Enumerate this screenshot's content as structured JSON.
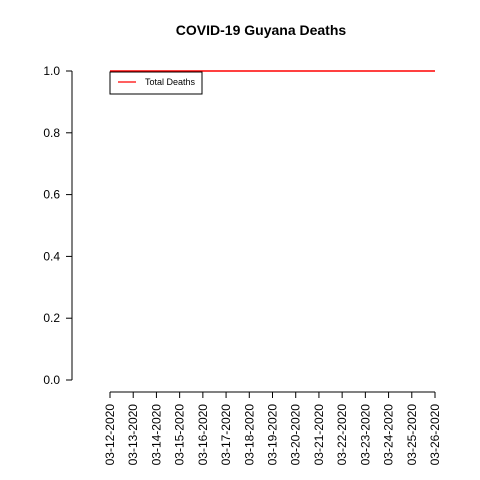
{
  "chart_data": {
    "type": "line",
    "title": "COVID-19 Guyana Deaths",
    "xlabel": "",
    "ylabel": "",
    "x": [
      "03-12-2020",
      "03-13-2020",
      "03-14-2020",
      "03-15-2020",
      "03-16-2020",
      "03-17-2020",
      "03-18-2020",
      "03-19-2020",
      "03-20-2020",
      "03-21-2020",
      "03-22-2020",
      "03-23-2020",
      "03-24-2020",
      "03-25-2020",
      "03-26-2020"
    ],
    "series": [
      {
        "name": "Total Deaths",
        "color": "#ff0000",
        "values": [
          1,
          1,
          1,
          1,
          1,
          1,
          1,
          1,
          1,
          1,
          1,
          1,
          1,
          1,
          1
        ]
      }
    ],
    "ylim": [
      0,
      1
    ],
    "yticks": [
      "0.0",
      "0.2",
      "0.4",
      "0.6",
      "0.8",
      "1.0"
    ],
    "legend": "top-left",
    "grid": false
  }
}
